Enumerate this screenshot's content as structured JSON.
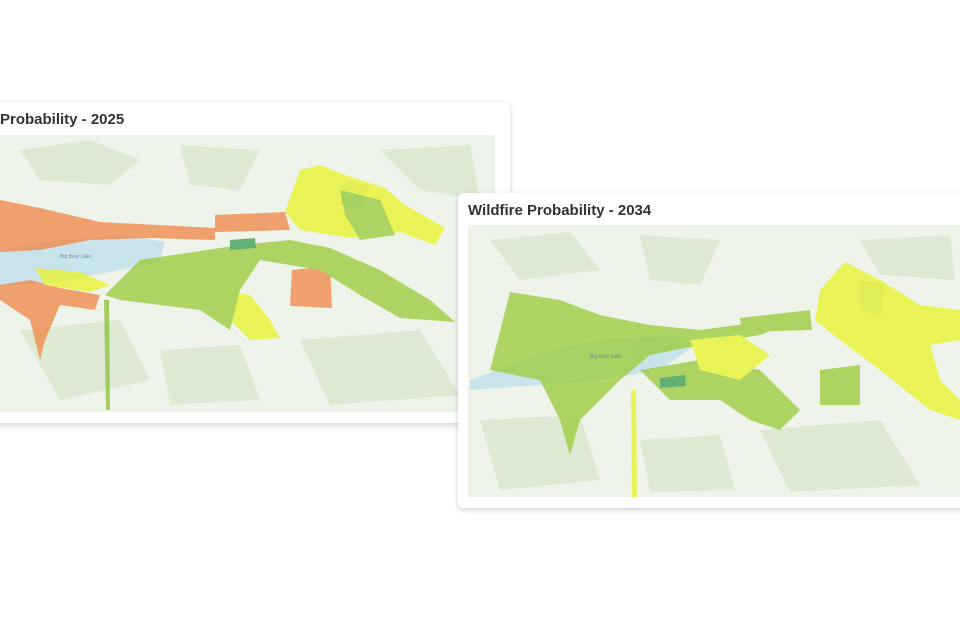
{
  "cards": [
    {
      "title": "Probability - 2025",
      "map_labels": [
        "Big Bear Lake"
      ]
    },
    {
      "title": "Wildfire Probability - 2034",
      "map_labels": [
        "Big Bear Lake"
      ]
    }
  ]
}
